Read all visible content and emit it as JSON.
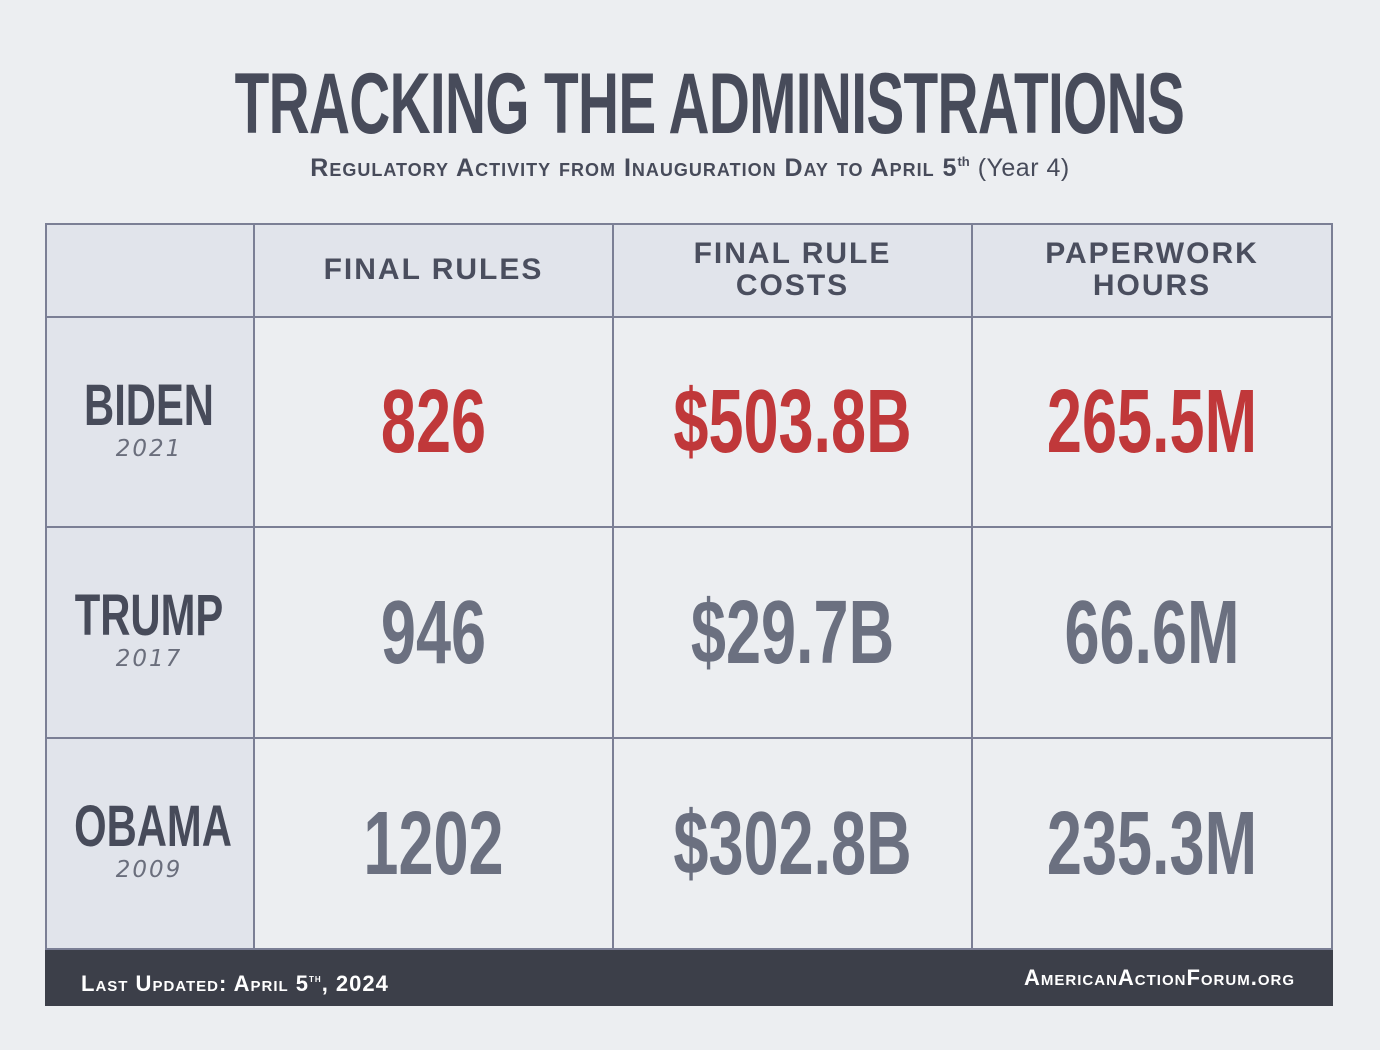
{
  "title": "TRACKING THE ADMINISTRATIONS",
  "subtitle": {
    "main": "Regulatory Activity from Inauguration Day to April 5",
    "sup": "th",
    "paren": "(Year 4)"
  },
  "colors": {
    "highlight": "#c0383a",
    "value": "#6b7080",
    "text": "#474b5a",
    "footer_bg": "#3c3f49"
  },
  "chart_data": {
    "type": "table",
    "columns": [
      "FINAL RULES",
      "FINAL RULE COSTS",
      "PAPERWORK HOURS"
    ],
    "rows": [
      {
        "name": "BIDEN",
        "year": "2021",
        "values": [
          "826",
          "$503.8B",
          "265.5M"
        ],
        "highlight": true
      },
      {
        "name": "TRUMP",
        "year": "2017",
        "values": [
          "946",
          "$29.7B",
          "66.6M"
        ],
        "highlight": false
      },
      {
        "name": "OBAMA",
        "year": "2009",
        "values": [
          "1202",
          "$302.8B",
          "235.3M"
        ],
        "highlight": false
      }
    ]
  },
  "footer": {
    "updated_prefix": "Last Updated: April 5",
    "updated_sup": "th",
    "updated_suffix": ", 2024",
    "site": "AmericanActionForum.org"
  }
}
